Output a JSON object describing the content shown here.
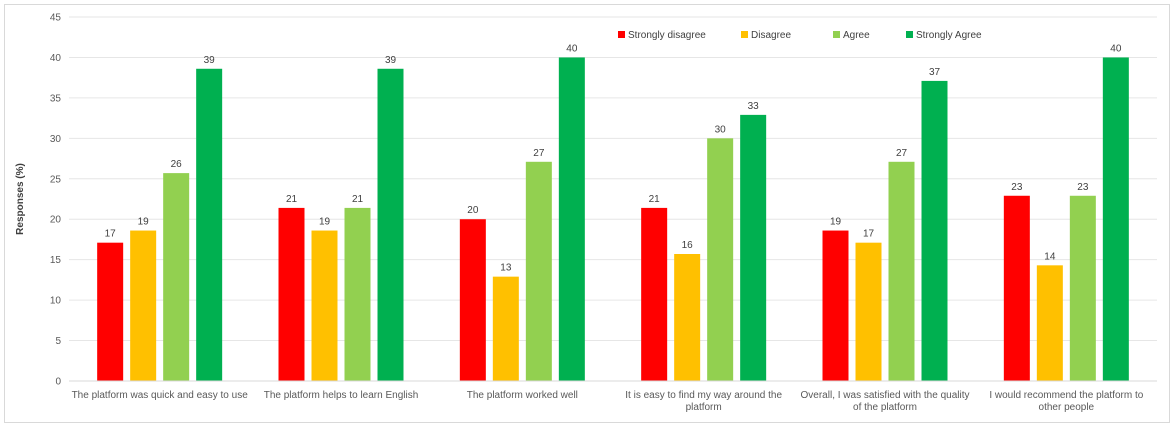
{
  "chart_data": {
    "type": "bar",
    "ylabel": "Responses (%)",
    "ylim": [
      0,
      45
    ],
    "ytick_step": 5,
    "grid": "horizontal",
    "legend_position": "top-right",
    "categories": [
      [
        "The platform was quick and easy to use"
      ],
      [
        "The platform helps to learn English"
      ],
      [
        "The platform worked well"
      ],
      [
        "It is easy to find my way around the",
        "platform"
      ],
      [
        "Overall, I was satisfied with the quality",
        "of the platform"
      ],
      [
        "I would recommend the platform to",
        "other people"
      ]
    ],
    "series": [
      {
        "name": "Strongly disagree",
        "color": "#ff0000",
        "values": [
          17.1,
          21.4,
          20.0,
          21.4,
          18.6,
          22.9
        ],
        "labels": [
          "17",
          "21",
          "20",
          "21",
          "19",
          "23"
        ]
      },
      {
        "name": "Disagree",
        "color": "#ffc000",
        "values": [
          18.6,
          18.6,
          12.9,
          15.7,
          17.1,
          14.3
        ],
        "labels": [
          "19",
          "19",
          "13",
          "16",
          "17",
          "14"
        ]
      },
      {
        "name": "Agree",
        "color": "#92d050",
        "values": [
          25.7,
          21.4,
          27.1,
          30.0,
          27.1,
          22.9
        ],
        "labels": [
          "26",
          "21",
          "27",
          "30",
          "27",
          "23"
        ]
      },
      {
        "name": "Strongly Agree",
        "color": "#00b050",
        "values": [
          38.6,
          38.6,
          40.0,
          32.9,
          37.1,
          40.0
        ],
        "labels": [
          "39",
          "39",
          "40",
          "33",
          "37",
          "40"
        ]
      }
    ]
  }
}
